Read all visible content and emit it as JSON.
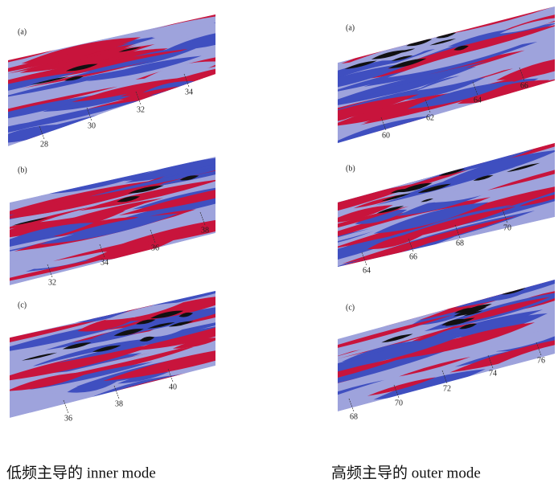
{
  "figures": [
    {
      "panels": [
        {
          "label": "(a)",
          "annotations": [
            "28",
            "30",
            "32",
            "34"
          ]
        },
        {
          "label": "(b)",
          "annotations": [
            "32",
            "34",
            "36",
            "38"
          ]
        },
        {
          "label": "(c)",
          "annotations": [
            "36",
            "38",
            "40"
          ]
        }
      ],
      "caption": "低频主导的 inner mode"
    },
    {
      "panels": [
        {
          "label": "(a)",
          "annotations": [
            "60",
            "62",
            "64",
            "66"
          ]
        },
        {
          "label": "(b)",
          "annotations": [
            "64",
            "66",
            "68",
            "70"
          ]
        },
        {
          "label": "(c)",
          "annotations": [
            "68",
            "70",
            "72",
            "74",
            "76"
          ]
        }
      ],
      "caption": "高频主导的 outer mode"
    }
  ]
}
